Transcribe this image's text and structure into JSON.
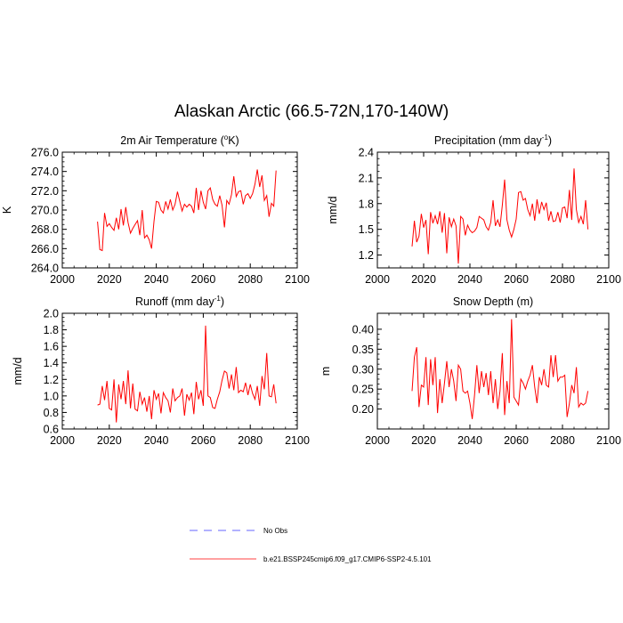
{
  "title": "Alaskan Arctic (66.5-72N,170-140W)",
  "legend": [
    {
      "label": "No Obs",
      "color": "#3333ff",
      "dashed": true
    },
    {
      "label": "b.e21.BSSP245cmip6.f09_g17.CMIP6-SSP2-4.5.101",
      "color": "#ff0000",
      "dashed": false
    }
  ],
  "chart_data": [
    {
      "type": "line",
      "title": "2m Air Temperature (°K)",
      "title_main": "2m Air Temperature (",
      "title_sup": "o",
      "title_tail": "K)",
      "ylabel": "K",
      "xlim": [
        2000,
        2100
      ],
      "ylim": [
        264,
        276
      ],
      "xticks": [
        2000,
        2020,
        2040,
        2060,
        2080,
        2100
      ],
      "yticks": [
        264.0,
        266.0,
        268.0,
        270.0,
        272.0,
        274.0,
        276.0
      ],
      "ytick_labels": [
        "264.0",
        "266.0",
        "268.0",
        "270.0",
        "272.0",
        "274.0",
        "276.0"
      ],
      "series": [
        {
          "color": "#ff0000",
          "x_start": 2015,
          "values": [
            268.8,
            265.9,
            265.8,
            269.7,
            268.3,
            268.6,
            268.2,
            267.9,
            269.2,
            268.0,
            270.1,
            268.4,
            270.3,
            268.7,
            267.6,
            268.1,
            268.5,
            268.9,
            267.4,
            270.0,
            267.1,
            267.4,
            266.9,
            266.0,
            268.8,
            270.9,
            270.8,
            270.0,
            269.7,
            270.9,
            270.1,
            271.1,
            270.0,
            270.6,
            271.9,
            270.9,
            269.9,
            270.6,
            270.3,
            270.6,
            270.4,
            269.7,
            272.3,
            270.0,
            272.0,
            270.8,
            270.1,
            272.0,
            272.3,
            271.1,
            270.6,
            270.4,
            271.5,
            270.5,
            268.2,
            271.0,
            270.6,
            271.6,
            273.5,
            271.4,
            271.9,
            272.0,
            270.6,
            271.5,
            271.7,
            271.2,
            271.7,
            272.7,
            274.2,
            272.4,
            273.6,
            271.0,
            271.5,
            269.3,
            270.7,
            270.4,
            274.1
          ]
        }
      ]
    },
    {
      "type": "line",
      "title": "Precipitation (mm day⁻¹)",
      "title_main": "Precipitation (mm day",
      "title_sup": "-1",
      "title_tail": ")",
      "ylabel": "mm/d",
      "xlim": [
        2000,
        2100
      ],
      "ylim": [
        1.05,
        2.4
      ],
      "xticks": [
        2000,
        2020,
        2040,
        2060,
        2080,
        2100
      ],
      "yticks": [
        1.2,
        1.5,
        1.8,
        2.1,
        2.4
      ],
      "ytick_labels": [
        "1.2",
        "1.5",
        "1.8",
        "2.1",
        "2.4"
      ],
      "series": [
        {
          "color": "#ff0000",
          "x_start": 2015,
          "values": [
            1.3,
            1.6,
            1.35,
            1.42,
            1.68,
            1.52,
            1.61,
            1.21,
            1.7,
            1.57,
            1.66,
            1.56,
            1.71,
            1.46,
            1.69,
            1.22,
            1.64,
            1.53,
            1.62,
            1.54,
            1.1,
            1.65,
            1.62,
            1.43,
            1.55,
            1.49,
            1.46,
            1.48,
            1.52,
            1.65,
            1.63,
            1.61,
            1.53,
            1.49,
            1.58,
            1.84,
            1.54,
            1.61,
            1.53,
            1.78,
            2.08,
            1.61,
            1.49,
            1.41,
            1.5,
            1.62,
            1.93,
            1.94,
            1.84,
            1.86,
            1.73,
            1.66,
            1.8,
            1.6,
            1.85,
            1.68,
            1.82,
            1.73,
            1.81,
            1.6,
            1.71,
            1.59,
            1.6,
            1.7,
            1.58,
            1.75,
            1.76,
            1.63,
            1.96,
            1.61,
            2.21,
            1.73,
            1.58,
            1.65,
            1.56,
            1.84,
            1.5
          ]
        }
      ]
    },
    {
      "type": "line",
      "title": "Runoff (mm day⁻¹)",
      "title_main": "Runoff (mm day",
      "title_sup": "-1",
      "title_tail": ")",
      "ylabel": "mm/d",
      "xlim": [
        2000,
        2100
      ],
      "ylim": [
        0.6,
        2.0
      ],
      "xticks": [
        2000,
        2020,
        2040,
        2060,
        2080,
        2100
      ],
      "yticks": [
        0.6,
        0.8,
        1.0,
        1.2,
        1.4,
        1.6,
        1.8,
        2.0
      ],
      "ytick_labels": [
        "0.6",
        "0.8",
        "1.0",
        "1.2",
        "1.4",
        "1.6",
        "1.8",
        "2.0"
      ],
      "series": [
        {
          "color": "#ff0000",
          "x_start": 2015,
          "values": [
            0.89,
            0.9,
            1.12,
            0.95,
            1.18,
            0.85,
            0.83,
            1.2,
            0.68,
            1.14,
            0.96,
            1.18,
            0.9,
            1.31,
            0.85,
            1.15,
            0.84,
            0.82,
            1.05,
            0.9,
            0.98,
            0.81,
            1.0,
            0.72,
            1.07,
            0.96,
            1.03,
            0.79,
            1.04,
            0.98,
            0.94,
            0.8,
            1.09,
            0.94,
            0.98,
            1.0,
            1.09,
            0.76,
            1.02,
            0.95,
            1.04,
            0.78,
            1.17,
            0.96,
            1.07,
            0.88,
            1.85,
            1.0,
            0.98,
            0.86,
            0.85,
            0.96,
            1.05,
            1.19,
            1.3,
            1.28,
            1.09,
            1.26,
            1.07,
            1.35,
            1.04,
            1.07,
            1.05,
            1.16,
            1.01,
            1.14,
            1.03,
            0.96,
            1.12,
            0.88,
            1.24,
            1.08,
            1.52,
            1.0,
            0.99,
            1.14,
            0.91
          ]
        }
      ]
    },
    {
      "type": "line",
      "title": "Snow Depth (m)",
      "title_main": "Snow Depth (m)",
      "title_sup": "",
      "title_tail": "",
      "ylabel": "m",
      "xlim": [
        2000,
        2100
      ],
      "ylim": [
        0.15,
        0.44
      ],
      "xticks": [
        2000,
        2020,
        2040,
        2060,
        2080,
        2100
      ],
      "yticks": [
        0.2,
        0.25,
        0.3,
        0.35,
        0.4
      ],
      "ytick_labels": [
        "0.20",
        "0.25",
        "0.30",
        "0.35",
        "0.40"
      ],
      "series": [
        {
          "color": "#ff0000",
          "x_start": 2015,
          "values": [
            0.245,
            0.33,
            0.355,
            0.205,
            0.26,
            0.255,
            0.33,
            0.21,
            0.325,
            0.26,
            0.33,
            0.19,
            0.275,
            0.215,
            0.265,
            0.32,
            0.255,
            0.3,
            0.27,
            0.22,
            0.31,
            0.3,
            0.245,
            0.24,
            0.245,
            0.215,
            0.175,
            0.235,
            0.31,
            0.24,
            0.295,
            0.255,
            0.29,
            0.235,
            0.295,
            0.215,
            0.275,
            0.2,
            0.245,
            0.34,
            0.185,
            0.27,
            0.215,
            0.425,
            0.23,
            0.22,
            0.21,
            0.275,
            0.265,
            0.25,
            0.27,
            0.285,
            0.31,
            0.255,
            0.215,
            0.28,
            0.26,
            0.3,
            0.26,
            0.255,
            0.335,
            0.28,
            0.335,
            0.27,
            0.28,
            0.28,
            0.285,
            0.18,
            0.215,
            0.26,
            0.24,
            0.305,
            0.205,
            0.215,
            0.21,
            0.215,
            0.245
          ]
        }
      ]
    }
  ]
}
